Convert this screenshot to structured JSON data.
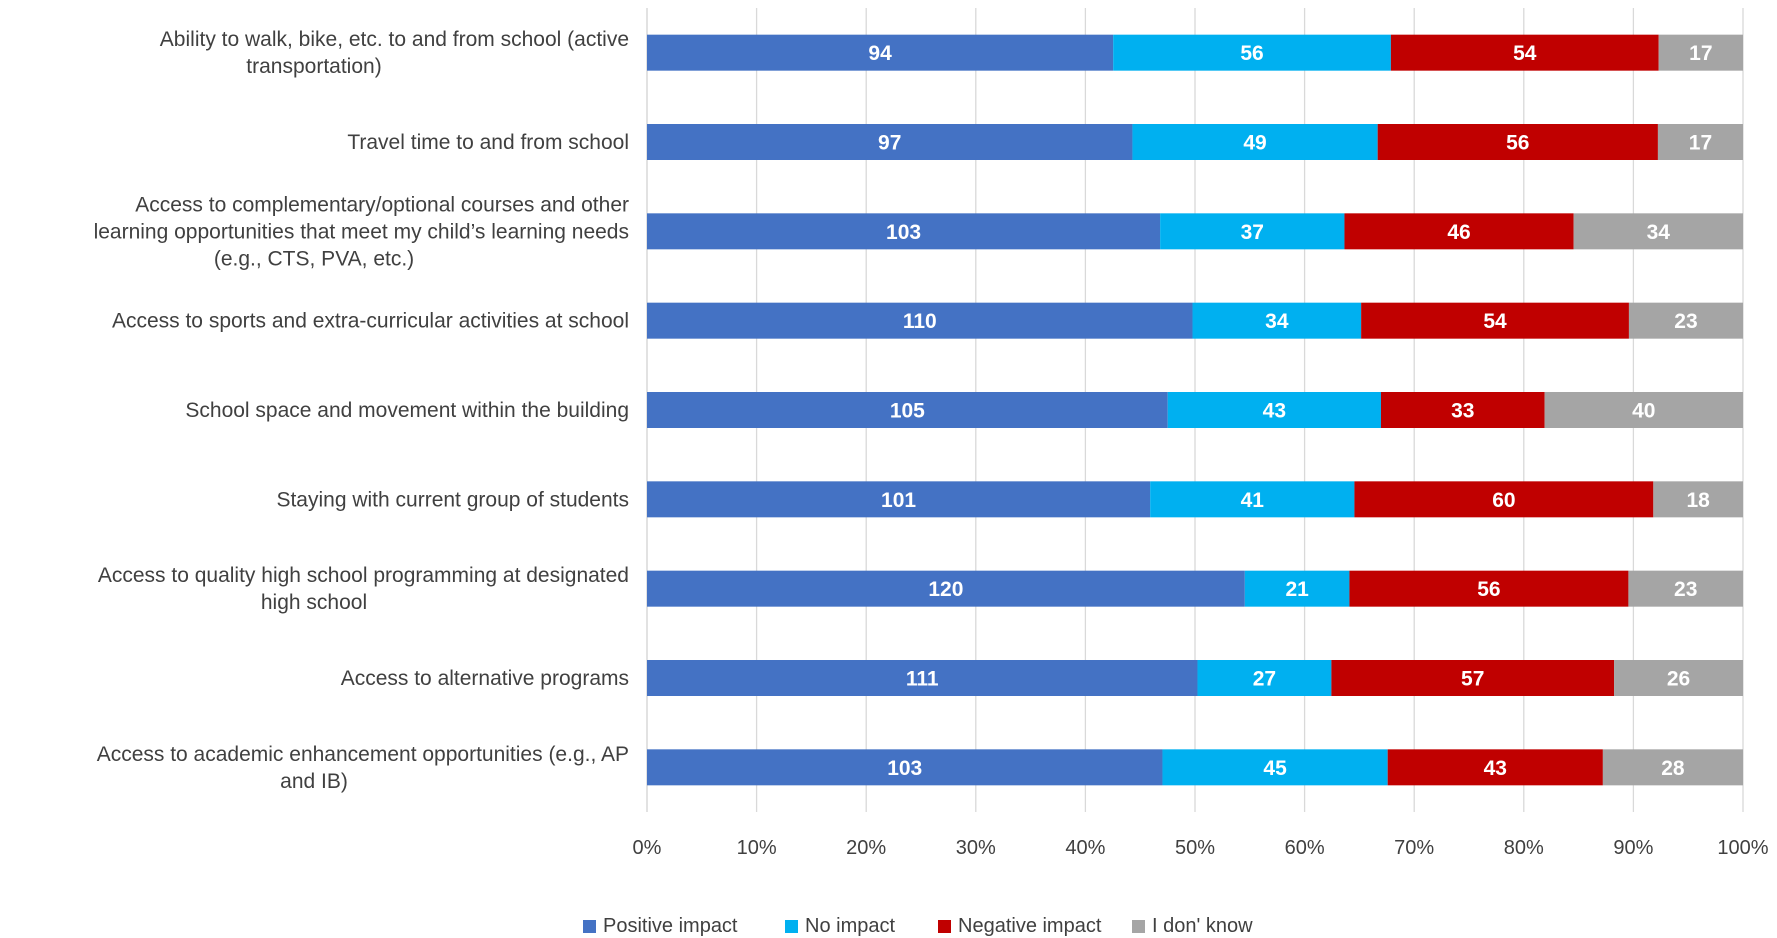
{
  "chart_data": {
    "type": "bar",
    "orientation": "horizontal",
    "stacking": "percent",
    "categories": [
      [
        "Ability to walk, bike, etc. to and from school (active",
        "transportation)"
      ],
      [
        "Travel time to and from school"
      ],
      [
        "Access to complementary/optional courses and other",
        "learning opportunities that meet my child’s learning needs",
        "(e.g., CTS, PVA, etc.)"
      ],
      [
        "Access to sports and extra-curricular activities at school"
      ],
      [
        "School space and movement within the building"
      ],
      [
        "Staying with current group of students"
      ],
      [
        "Access to quality high school programming at designated",
        "high school"
      ],
      [
        "Access to alternative programs"
      ],
      [
        "Access to academic enhancement opportunities (e.g., AP",
        "and IB)"
      ]
    ],
    "series": [
      {
        "name": "Positive impact",
        "color": "#4472C4",
        "values": [
          94,
          97,
          103,
          110,
          105,
          101,
          120,
          111,
          103
        ]
      },
      {
        "name": "No impact",
        "color": "#00B0F0",
        "values": [
          56,
          49,
          37,
          34,
          43,
          41,
          21,
          27,
          45
        ]
      },
      {
        "name": "Negative impact",
        "color": "#C00000",
        "values": [
          54,
          56,
          46,
          54,
          33,
          60,
          56,
          57,
          43
        ]
      },
      {
        "name": "I don' know",
        "color": "#A5A5A5",
        "values": [
          17,
          17,
          34,
          23,
          40,
          18,
          23,
          26,
          28
        ]
      }
    ],
    "x_ticks": [
      "0%",
      "10%",
      "20%",
      "30%",
      "40%",
      "50%",
      "60%",
      "70%",
      "80%",
      "90%",
      "100%"
    ],
    "xlim": [
      0,
      100
    ],
    "grid": true,
    "legend": "bottom",
    "title": "",
    "xlabel": "",
    "ylabel": ""
  }
}
